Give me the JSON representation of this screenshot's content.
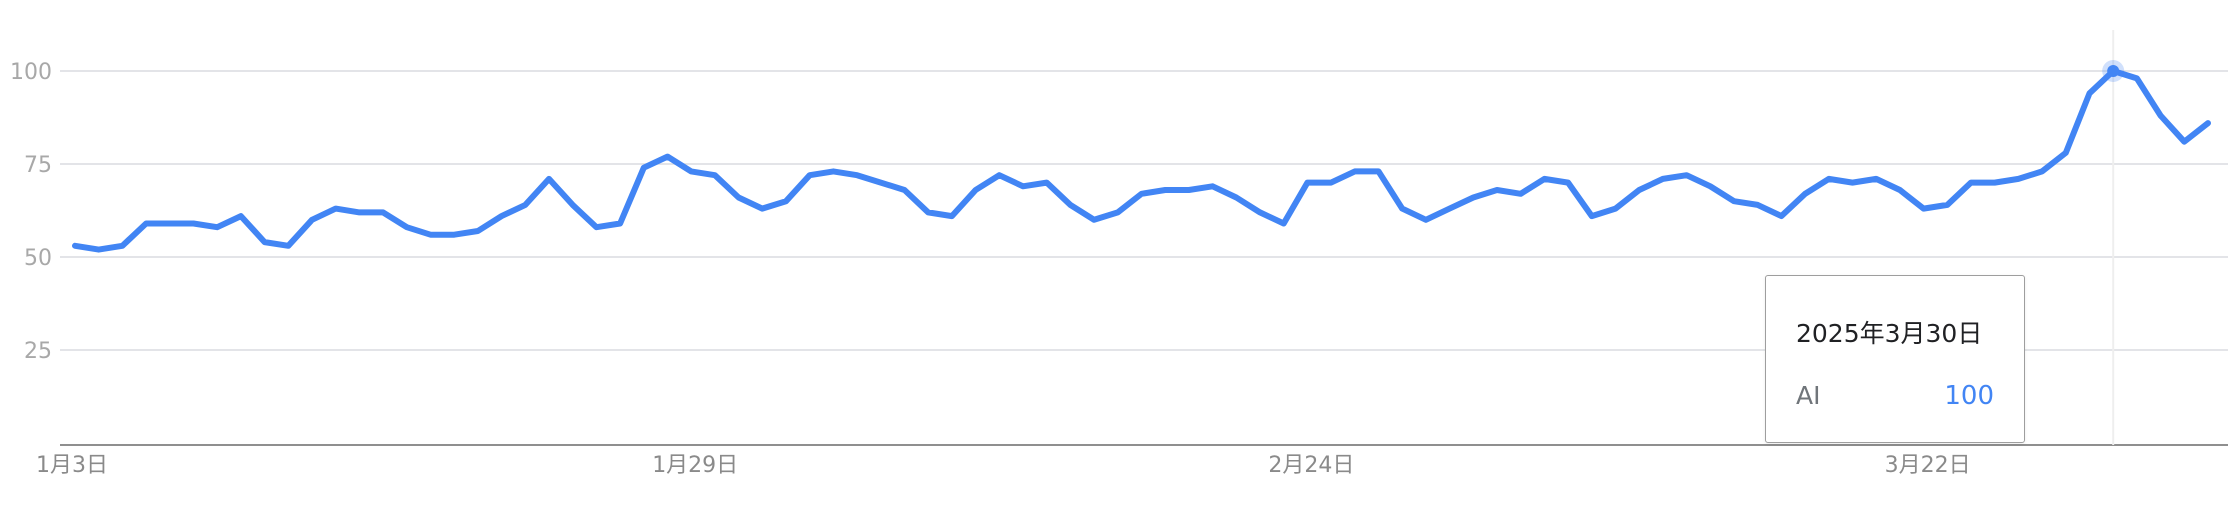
{
  "chart_data": {
    "type": "line",
    "x": [
      "2025-01-03",
      "2025-01-04",
      "2025-01-05",
      "2025-01-06",
      "2025-01-07",
      "2025-01-08",
      "2025-01-09",
      "2025-01-10",
      "2025-01-11",
      "2025-01-12",
      "2025-01-13",
      "2025-01-14",
      "2025-01-15",
      "2025-01-16",
      "2025-01-17",
      "2025-01-18",
      "2025-01-19",
      "2025-01-20",
      "2025-01-21",
      "2025-01-22",
      "2025-01-23",
      "2025-01-24",
      "2025-01-25",
      "2025-01-26",
      "2025-01-27",
      "2025-01-28",
      "2025-01-29",
      "2025-01-30",
      "2025-01-31",
      "2025-02-01",
      "2025-02-02",
      "2025-02-03",
      "2025-02-04",
      "2025-02-05",
      "2025-02-06",
      "2025-02-07",
      "2025-02-08",
      "2025-02-09",
      "2025-02-10",
      "2025-02-11",
      "2025-02-12",
      "2025-02-13",
      "2025-02-14",
      "2025-02-15",
      "2025-02-16",
      "2025-02-17",
      "2025-02-18",
      "2025-02-19",
      "2025-02-20",
      "2025-02-21",
      "2025-02-22",
      "2025-02-23",
      "2025-02-24",
      "2025-02-25",
      "2025-02-26",
      "2025-02-27",
      "2025-02-28",
      "2025-03-01",
      "2025-03-02",
      "2025-03-03",
      "2025-03-04",
      "2025-03-05",
      "2025-03-06",
      "2025-03-07",
      "2025-03-08",
      "2025-03-09",
      "2025-03-10",
      "2025-03-11",
      "2025-03-12",
      "2025-03-13",
      "2025-03-14",
      "2025-03-15",
      "2025-03-16",
      "2025-03-17",
      "2025-03-18",
      "2025-03-19",
      "2025-03-20",
      "2025-03-21",
      "2025-03-22",
      "2025-03-23",
      "2025-03-24",
      "2025-03-25",
      "2025-03-26",
      "2025-03-27",
      "2025-03-28",
      "2025-03-29",
      "2025-03-30",
      "2025-03-31",
      "2025-04-01",
      "2025-04-02",
      "2025-04-03"
    ],
    "series": [
      {
        "name": "AI",
        "color": "#4285f4",
        "values": [
          53,
          52,
          53,
          59,
          59,
          59,
          58,
          61,
          54,
          53,
          60,
          63,
          62,
          62,
          58,
          56,
          56,
          57,
          61,
          64,
          71,
          64,
          58,
          59,
          74,
          77,
          73,
          72,
          66,
          63,
          65,
          72,
          73,
          72,
          70,
          68,
          62,
          61,
          68,
          72,
          69,
          70,
          64,
          60,
          62,
          67,
          68,
          68,
          69,
          66,
          62,
          59,
          70,
          70,
          73,
          73,
          63,
          60,
          63,
          66,
          68,
          67,
          71,
          70,
          61,
          63,
          68,
          71,
          72,
          69,
          65,
          64,
          61,
          67,
          71,
          70,
          71,
          68,
          63,
          64,
          70,
          70,
          71,
          73,
          78,
          94,
          100,
          98,
          88,
          81,
          86
        ]
      }
    ],
    "ylim": [
      0,
      100
    ],
    "yticks": [
      25,
      50,
      75,
      100
    ],
    "xtick_labels": [
      {
        "x": "2025-01-03",
        "label": "1月3日"
      },
      {
        "x": "2025-01-29",
        "label": "1月29日"
      },
      {
        "x": "2025-02-24",
        "label": "2月24日"
      },
      {
        "x": "2025-03-22",
        "label": "3月22日"
      }
    ],
    "grid": true,
    "highlight": {
      "x": "2025-03-30",
      "date_label": "2025年3月30日",
      "series": "AI",
      "value": "100"
    }
  }
}
